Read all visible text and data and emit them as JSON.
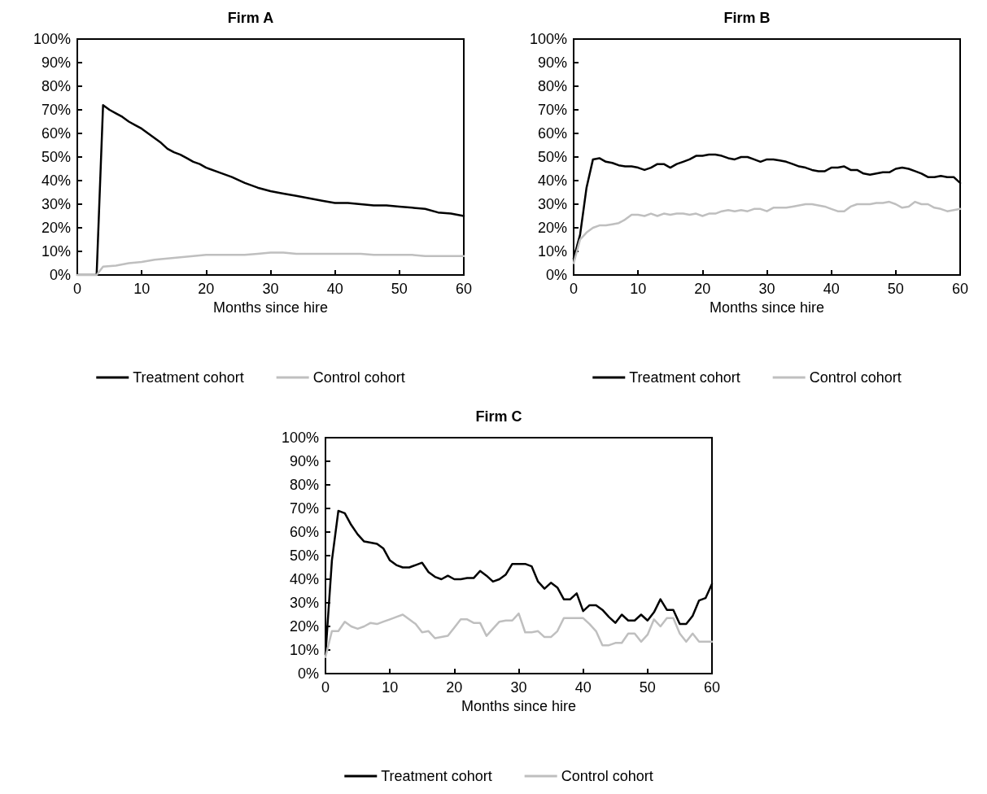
{
  "chart_data": [
    {
      "type": "line",
      "title": "Firm A",
      "xlabel": "Months since hire",
      "xlim": [
        0,
        60
      ],
      "xticks": [
        0,
        10,
        20,
        30,
        40,
        50,
        60
      ],
      "ylim": [
        0,
        100
      ],
      "yticks": [
        {
          "value": 0,
          "label": "0%"
        },
        {
          "value": 10,
          "label": "10%"
        },
        {
          "value": 20,
          "label": "20%"
        },
        {
          "value": 30,
          "label": "30%"
        },
        {
          "value": 40,
          "label": "40%"
        },
        {
          "value": 50,
          "label": "50%"
        },
        {
          "value": 60,
          "label": "60%"
        },
        {
          "value": 70,
          "label": "70%"
        },
        {
          "value": 80,
          "label": "80%"
        },
        {
          "value": 90,
          "label": "90%"
        },
        {
          "value": 100,
          "label": "100%"
        }
      ],
      "grid": false,
      "legend": "bottom",
      "marker": "none",
      "line_style": "solid",
      "series": [
        {
          "name": "Treatment cohort",
          "color": "#000000",
          "x": [
            0,
            1,
            2,
            3,
            4,
            5,
            6,
            7,
            8,
            9,
            10,
            11,
            12,
            13,
            14,
            15,
            16,
            17,
            18,
            19,
            20,
            22,
            24,
            26,
            28,
            30,
            32,
            34,
            36,
            38,
            40,
            42,
            44,
            46,
            48,
            50,
            52,
            54,
            56,
            58,
            60
          ],
          "values": [
            0,
            0,
            0,
            0,
            72,
            70,
            68.5,
            67,
            65,
            63.5,
            62,
            60,
            58,
            56,
            53.5,
            52,
            51,
            49.5,
            48,
            47,
            45.5,
            43.5,
            41.5,
            39,
            37,
            35.5,
            34.5,
            33.5,
            32.5,
            31.5,
            30.5,
            30.5,
            30,
            29.5,
            29.5,
            29,
            28.5,
            28,
            26.5,
            26,
            25
          ]
        },
        {
          "name": "Control cohort",
          "color": "#bfbfbf",
          "x": [
            0,
            1,
            2,
            3,
            4,
            6,
            8,
            10,
            12,
            14,
            16,
            18,
            20,
            22,
            24,
            26,
            28,
            30,
            32,
            34,
            36,
            38,
            40,
            42,
            44,
            46,
            48,
            50,
            52,
            54,
            56,
            58,
            60
          ],
          "values": [
            0,
            0,
            0,
            0,
            3.5,
            4,
            5,
            5.5,
            6.5,
            7,
            7.5,
            8,
            8.5,
            8.5,
            8.5,
            8.5,
            9,
            9.5,
            9.5,
            9,
            9,
            9,
            9,
            9,
            9,
            8.5,
            8.5,
            8.5,
            8.5,
            8,
            8,
            8,
            8
          ]
        }
      ]
    },
    {
      "type": "line",
      "title": "Firm B",
      "xlabel": "Months since hire",
      "xlim": [
        0,
        60
      ],
      "xticks": [
        0,
        10,
        20,
        30,
        40,
        50,
        60
      ],
      "ylim": [
        0,
        100
      ],
      "yticks": [
        {
          "value": 0,
          "label": "0%"
        },
        {
          "value": 10,
          "label": "10%"
        },
        {
          "value": 20,
          "label": "20%"
        },
        {
          "value": 30,
          "label": "30%"
        },
        {
          "value": 40,
          "label": "40%"
        },
        {
          "value": 50,
          "label": "50%"
        },
        {
          "value": 60,
          "label": "60%"
        },
        {
          "value": 70,
          "label": "70%"
        },
        {
          "value": 80,
          "label": "80%"
        },
        {
          "value": 90,
          "label": "90%"
        },
        {
          "value": 100,
          "label": "100%"
        }
      ],
      "grid": false,
      "legend": "bottom",
      "marker": "none",
      "line_style": "solid",
      "x": [
        0,
        1,
        2,
        3,
        4,
        5,
        6,
        7,
        8,
        9,
        10,
        11,
        12,
        13,
        14,
        15,
        16,
        17,
        18,
        19,
        20,
        21,
        22,
        23,
        24,
        25,
        26,
        27,
        28,
        29,
        30,
        31,
        32,
        33,
        34,
        35,
        36,
        37,
        38,
        39,
        40,
        41,
        42,
        43,
        44,
        45,
        46,
        47,
        48,
        49,
        50,
        51,
        52,
        53,
        54,
        55,
        56,
        57,
        58,
        59,
        60
      ],
      "series": [
        {
          "name": "Treatment cohort",
          "color": "#000000",
          "values": [
            7,
            17,
            37,
            49,
            49.5,
            48,
            47.5,
            46.5,
            46,
            46,
            45.5,
            44.5,
            45.5,
            47,
            47,
            45.5,
            47,
            48,
            49,
            50.5,
            50.5,
            51,
            51,
            50.5,
            49.5,
            49,
            50,
            50,
            49,
            48,
            49,
            49,
            48.5,
            48,
            47,
            46,
            45.5,
            44.5,
            44,
            44,
            45.5,
            45.5,
            46,
            44.5,
            44.5,
            43,
            42.5,
            43,
            43.5,
            43.5,
            45,
            45.5,
            45,
            44,
            43,
            41.5,
            41.5,
            42,
            41.5,
            41.5,
            39
          ]
        },
        {
          "name": "Control cohort",
          "color": "#bfbfbf",
          "values": [
            5,
            15,
            18,
            20,
            21,
            21,
            21.5,
            22,
            23.5,
            25.5,
            25.5,
            25,
            26,
            25,
            26,
            25.5,
            26,
            26,
            25.5,
            26,
            25,
            26,
            26,
            27,
            27.5,
            27,
            27.5,
            27,
            28,
            28,
            27,
            28.5,
            28.5,
            28.5,
            29,
            29.5,
            30,
            30,
            29.5,
            29,
            28,
            27,
            27,
            29,
            30,
            30,
            30,
            30.5,
            30.5,
            31,
            30,
            28.5,
            29,
            31,
            30,
            30,
            28.5,
            28,
            27,
            27.5,
            28
          ]
        }
      ]
    },
    {
      "type": "line",
      "title": "Firm C",
      "xlabel": "Months since hire",
      "xlim": [
        0,
        60
      ],
      "xticks": [
        0,
        10,
        20,
        30,
        40,
        50,
        60
      ],
      "ylim": [
        0,
        100
      ],
      "yticks": [
        {
          "value": 0,
          "label": "0%"
        },
        {
          "value": 10,
          "label": "10%"
        },
        {
          "value": 20,
          "label": "20%"
        },
        {
          "value": 30,
          "label": "30%"
        },
        {
          "value": 40,
          "label": "40%"
        },
        {
          "value": 50,
          "label": "50%"
        },
        {
          "value": 60,
          "label": "60%"
        },
        {
          "value": 70,
          "label": "70%"
        },
        {
          "value": 80,
          "label": "80%"
        },
        {
          "value": 90,
          "label": "90%"
        },
        {
          "value": 100,
          "label": "100%"
        }
      ],
      "grid": false,
      "legend": "bottom",
      "marker": "none",
      "line_style": "solid",
      "x": [
        0,
        1,
        2,
        3,
        4,
        5,
        6,
        7,
        8,
        9,
        10,
        11,
        12,
        13,
        14,
        15,
        16,
        17,
        18,
        19,
        20,
        21,
        22,
        23,
        24,
        25,
        26,
        27,
        28,
        29,
        30,
        31,
        32,
        33,
        34,
        35,
        36,
        37,
        38,
        39,
        40,
        41,
        42,
        43,
        44,
        45,
        46,
        47,
        48,
        49,
        50,
        51,
        52,
        53,
        54,
        55,
        56,
        57,
        58,
        59,
        60
      ],
      "series": [
        {
          "name": "Treatment cohort",
          "color": "#000000",
          "values": [
            8,
            48,
            69,
            68,
            63,
            59,
            56,
            55.5,
            55,
            53,
            48,
            46,
            45,
            45,
            46,
            47,
            43,
            41,
            40,
            41.5,
            40,
            40,
            40.5,
            40.5,
            43.5,
            41.5,
            39,
            40,
            42,
            46.5,
            46.5,
            46.5,
            45.5,
            39,
            36,
            38.5,
            36.5,
            31.5,
            31.5,
            34,
            26.5,
            29,
            29,
            27,
            24,
            21.5,
            25,
            22.5,
            22.5,
            25,
            22.5,
            26,
            31.5,
            27,
            27,
            21,
            21,
            24.5,
            31,
            32,
            38
          ]
        },
        {
          "name": "Control cohort",
          "color": "#bfbfbf",
          "values": [
            7,
            18,
            18,
            22,
            20,
            19,
            20,
            21.5,
            21,
            22,
            23,
            24,
            25,
            23,
            21,
            17.5,
            18,
            15,
            15.5,
            16,
            19.5,
            23,
            23,
            21.5,
            21.5,
            16,
            19,
            22,
            22.5,
            22.5,
            25.5,
            17.5,
            17.5,
            18,
            15.5,
            15.5,
            18,
            23.5,
            23.5,
            23.5,
            23.5,
            21,
            18,
            12,
            12,
            13,
            13,
            17,
            17,
            13.5,
            16.5,
            23,
            20,
            23.5,
            23.5,
            17,
            13.5,
            17,
            13.5,
            13.5,
            13.5
          ]
        }
      ]
    }
  ]
}
